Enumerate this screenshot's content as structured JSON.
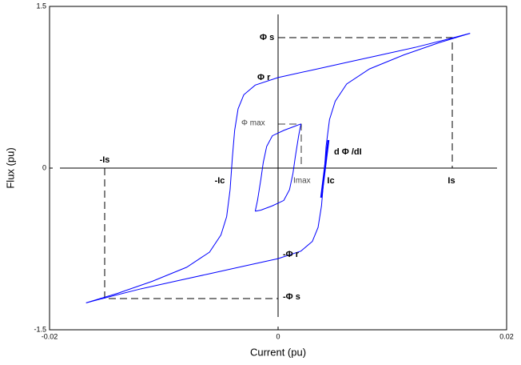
{
  "chart_data": {
    "type": "line",
    "x_label": "Current (pu)",
    "y_label": "Flux (pu)",
    "xlim": [
      -0.02,
      0.02
    ],
    "ylim": [
      -1.5,
      1.5
    ],
    "xticks": [
      -0.02,
      0,
      0.02
    ],
    "yticks": [
      -1.5,
      0,
      1.5
    ],
    "series": [
      {
        "color": "#0000ff",
        "x": [
          0.0168,
          0.015,
          0.012,
          0.009,
          0.006,
          0.003,
          0,
          -0.002,
          -0.003,
          -0.0035,
          -0.0038,
          -0.004,
          -0.0042,
          -0.0045,
          -0.005,
          -0.006,
          -0.008,
          -0.011,
          -0.014,
          -0.0168
        ],
        "values": [
          1.25,
          1.2,
          1.12,
          1.05,
          0.98,
          0.91,
          0.84,
          0.77,
          0.68,
          0.55,
          0.35,
          0.1,
          -0.2,
          -0.45,
          -0.62,
          -0.78,
          -0.92,
          -1.05,
          -1.16,
          -1.25
        ]
      },
      {
        "color": "#0000ff",
        "x": [
          -0.0168,
          -0.015,
          -0.012,
          -0.009,
          -0.006,
          -0.003,
          0,
          0.002,
          0.003,
          0.0035,
          0.0038,
          0.004,
          0.0042,
          0.0045,
          0.005,
          0.006,
          0.008,
          0.011,
          0.014,
          0.0168
        ],
        "values": [
          -1.25,
          -1.2,
          -1.12,
          -1.05,
          -0.98,
          -0.91,
          -0.84,
          -0.77,
          -0.68,
          -0.55,
          -0.35,
          -0.1,
          0.2,
          0.45,
          0.62,
          0.78,
          0.92,
          1.05,
          1.16,
          1.25
        ]
      },
      {
        "color": "#0000ff",
        "x": [
          0.002,
          0.0015,
          0.0005,
          -0.0005,
          -0.001,
          -0.0013,
          -0.0015,
          -0.0018,
          -0.002
        ],
        "values": [
          0.41,
          0.39,
          0.35,
          0.3,
          0.2,
          0.05,
          -0.1,
          -0.3,
          -0.4
        ]
      },
      {
        "color": "#0000ff",
        "x": [
          -0.002,
          -0.0015,
          -0.0005,
          0.0005,
          0.001,
          0.0013,
          0.0015,
          0.0018,
          0.002
        ],
        "values": [
          -0.4,
          -0.39,
          -0.35,
          -0.3,
          -0.2,
          -0.05,
          0.1,
          0.3,
          0.41
        ]
      }
    ],
    "annotations": [
      "Φ s",
      "Φ r",
      "Φ max",
      "d Φ /dI",
      "-Is",
      "-Ic",
      "Imax",
      "Ic",
      "Is",
      "-Φ r",
      "-Φ s"
    ]
  }
}
